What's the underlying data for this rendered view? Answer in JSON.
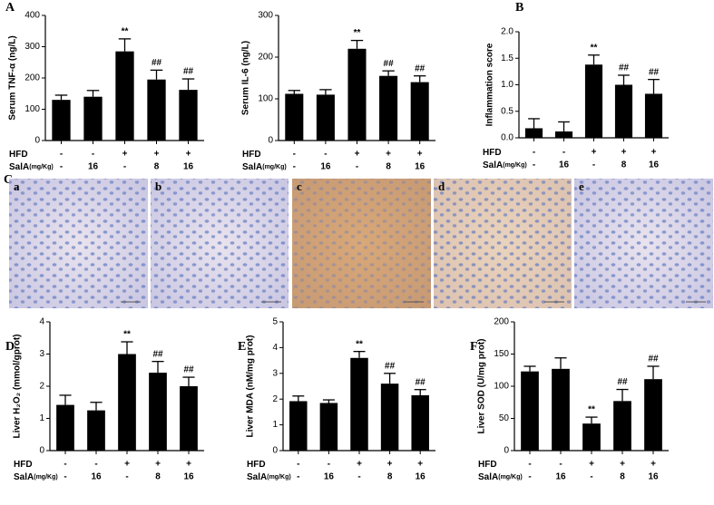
{
  "panel_labels": [
    "A",
    "B",
    "C",
    "D",
    "E",
    "F"
  ],
  "image_labels": [
    "a",
    "b",
    "c",
    "d",
    "e"
  ],
  "chart_data": [
    {
      "type": "bar",
      "y_label": "Serum TNF-α (ng/L)",
      "color": "#000000",
      "values": [
        130,
        140,
        285,
        195,
        162
      ],
      "errors": [
        15,
        20,
        40,
        30,
        35
      ],
      "annotations": [
        null,
        null,
        "**",
        "##",
        "##"
      ],
      "ylim": [
        0,
        400
      ],
      "yticks": [
        0,
        100,
        200,
        300,
        400
      ],
      "conditions": [
        {
          "label": "HFD",
          "values": [
            "-",
            "-",
            "+",
            "+",
            "+"
          ]
        },
        {
          "label": "SalA",
          "unit": "(mg/Kg)",
          "values": [
            "-",
            "16",
            "-",
            "8",
            "16"
          ]
        }
      ]
    },
    {
      "type": "bar",
      "y_label": "Serum IL-6 (ng/L)",
      "color": "#000000",
      "values": [
        112,
        110,
        220,
        155,
        140
      ],
      "errors": [
        8,
        12,
        20,
        12,
        15
      ],
      "annotations": [
        null,
        null,
        "**",
        "##",
        "##"
      ],
      "ylim": [
        0,
        300
      ],
      "yticks": [
        0,
        100,
        200,
        300
      ],
      "conditions": [
        {
          "label": "HFD",
          "values": [
            "-",
            "-",
            "+",
            "+",
            "+"
          ]
        },
        {
          "label": "SalA",
          "unit": "(mg/Kg)",
          "values": [
            "-",
            "16",
            "-",
            "8",
            "16"
          ]
        }
      ]
    },
    {
      "type": "bar",
      "y_label": "Inflammation score",
      "color": "#000000",
      "values": [
        0.18,
        0.12,
        1.38,
        1.0,
        0.83
      ],
      "errors": [
        0.18,
        0.18,
        0.18,
        0.18,
        0.27
      ],
      "annotations": [
        null,
        null,
        "**",
        "##",
        "##"
      ],
      "ylim": [
        0,
        2
      ],
      "yticks": [
        {
          "value": 0,
          "label": "0.0"
        },
        0.5,
        {
          "value": 1,
          "label": "1.0"
        },
        1.5,
        {
          "value": 2,
          "label": "2.0"
        }
      ],
      "conditions": [
        {
          "label": "HFD",
          "values": [
            "-",
            "-",
            "+",
            "+",
            "+"
          ]
        },
        {
          "label": "SalA",
          "unit": "(mg/Kg)",
          "values": [
            "-",
            "16",
            "-",
            "8",
            "16"
          ]
        }
      ]
    },
    {
      "type": "bar",
      "y_label": "Liver H₂O₂ (mmol/gprot)",
      "color": "#000000",
      "values": [
        1.42,
        1.25,
        3.0,
        2.42,
        2.0
      ],
      "errors": [
        0.3,
        0.25,
        0.38,
        0.35,
        0.28
      ],
      "annotations": [
        null,
        null,
        "**",
        "##",
        "##"
      ],
      "ylim": [
        0,
        4
      ],
      "yticks": [
        0,
        1,
        2,
        3,
        4
      ],
      "conditions": [
        {
          "label": "HFD",
          "values": [
            "-",
            "-",
            "+",
            "+",
            "+"
          ]
        },
        {
          "label": "SalA",
          "unit": "(mg/Kg)",
          "values": [
            "-",
            "16",
            "-",
            "8",
            "16"
          ]
        }
      ]
    },
    {
      "type": "bar",
      "y_label": "Liver MDA (nM/mg prot)",
      "color": "#000000",
      "values": [
        1.92,
        1.85,
        3.6,
        2.6,
        2.15
      ],
      "errors": [
        0.2,
        0.12,
        0.25,
        0.4,
        0.22
      ],
      "annotations": [
        null,
        null,
        "**",
        "##",
        "##"
      ],
      "ylim": [
        0,
        5
      ],
      "yticks": [
        0,
        1,
        2,
        3,
        4,
        5
      ],
      "conditions": [
        {
          "label": "HFD",
          "values": [
            "-",
            "-",
            "+",
            "+",
            "+"
          ]
        },
        {
          "label": "SalA",
          "unit": "(mg/Kg)",
          "values": [
            "-",
            "16",
            "-",
            "8",
            "16"
          ]
        }
      ]
    },
    {
      "type": "bar",
      "y_label": "Liver SOD (U/mg prot)",
      "color": "#000000",
      "values": [
        123,
        127,
        42,
        77,
        111
      ],
      "errors": [
        8,
        17,
        10,
        18,
        20
      ],
      "annotations": [
        null,
        null,
        "**",
        "##",
        "##"
      ],
      "ylim": [
        0,
        200
      ],
      "yticks": [
        0,
        50,
        100,
        150,
        200
      ],
      "conditions": [
        {
          "label": "HFD",
          "values": [
            "-",
            "-",
            "+",
            "+",
            "+"
          ]
        },
        {
          "label": "SalA",
          "unit": "(mg/Kg)",
          "values": [
            "-",
            "16",
            "-",
            "8",
            "16"
          ]
        }
      ]
    }
  ]
}
